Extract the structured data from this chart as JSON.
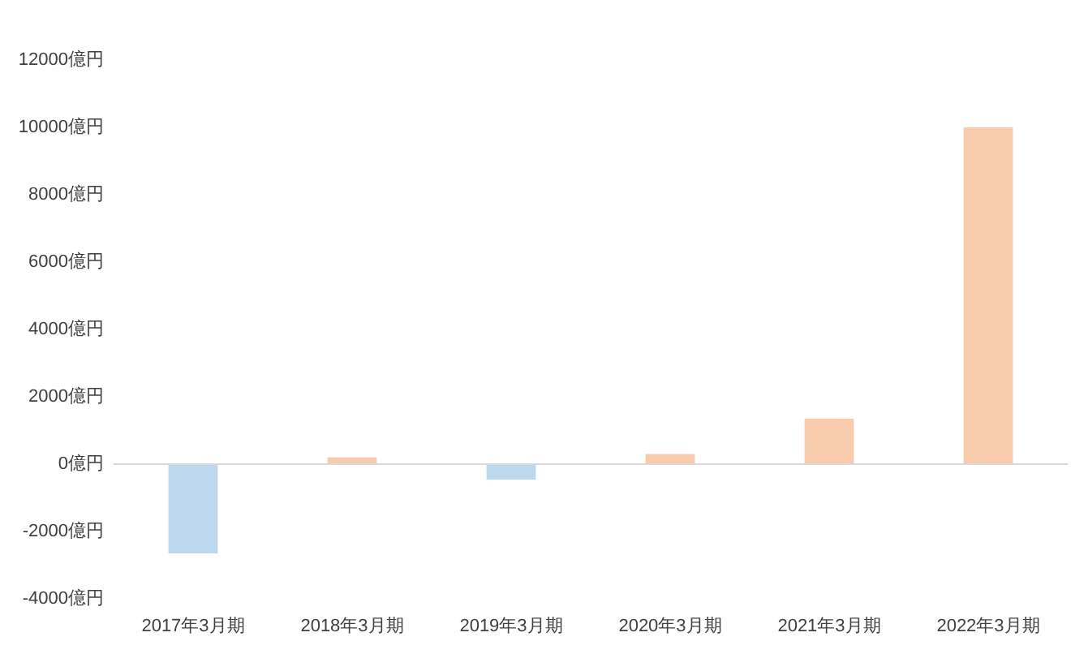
{
  "chart_data": {
    "type": "bar",
    "categories": [
      "2017年3月期",
      "2018年3月期",
      "2019年3月期",
      "2020年3月期",
      "2021年3月期",
      "2022年3月期"
    ],
    "values": [
      -2650,
      200,
      -460,
      300,
      1350,
      10000
    ],
    "colors": [
      "#bdd7ee",
      "#f8cbad",
      "#bdd7ee",
      "#f8cbad",
      "#f8cbad",
      "#f8cbad"
    ],
    "ylim": [
      -4000,
      12000
    ],
    "yticks": [
      {
        "value": -4000,
        "label": "-4000億円"
      },
      {
        "value": -2000,
        "label": "-2000億円"
      },
      {
        "value": 0,
        "label": "0億円"
      },
      {
        "value": 2000,
        "label": "2000億円"
      },
      {
        "value": 4000,
        "label": "4000億円"
      },
      {
        "value": 6000,
        "label": "6000億円"
      },
      {
        "value": 8000,
        "label": "8000億円"
      },
      {
        "value": 10000,
        "label": "10000億円"
      },
      {
        "value": 12000,
        "label": "12000億円"
      }
    ]
  }
}
